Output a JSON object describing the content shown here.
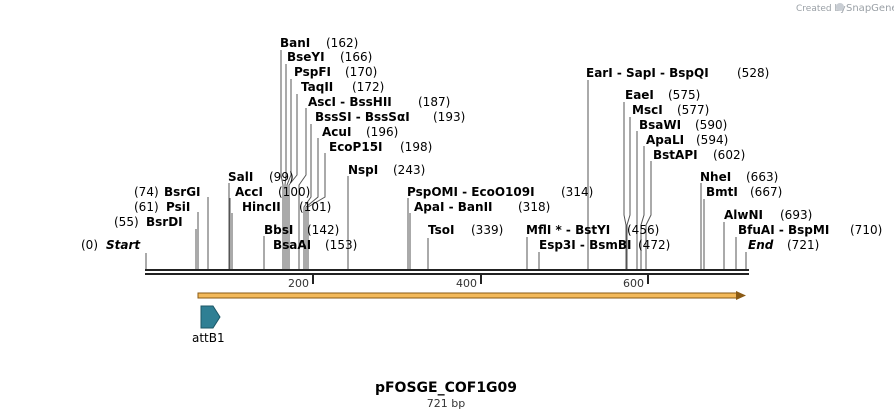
{
  "credit": "Created by",
  "brand": "SnapGene",
  "plasmid": {
    "name": "pFOSGE_COF1G09",
    "length_label": "721 bp",
    "length": 721
  },
  "ticks": [
    "200",
    "400",
    "600"
  ],
  "sites": [
    {
      "text": "Start",
      "pos": "(0)",
      "italic": true
    },
    {
      "text": "BsrDI",
      "pos": "(55)"
    },
    {
      "text": "PsiI",
      "pos": "(61)"
    },
    {
      "text": "BsrGI",
      "pos": "(74)"
    },
    {
      "text": "SalI",
      "pos": "(99)"
    },
    {
      "text": "AccI",
      "pos": "(100)"
    },
    {
      "text": "HincII",
      "pos": "(101)"
    },
    {
      "text": "BbsI",
      "pos": "(142)"
    },
    {
      "text": "BsaAI",
      "pos": "(153)"
    },
    {
      "text": "BanI",
      "pos": "(162)"
    },
    {
      "text": "BseYI",
      "pos": "(166)"
    },
    {
      "text": "PspFI",
      "pos": "(170)"
    },
    {
      "text": "TaqII",
      "pos": "(172)"
    },
    {
      "text": "AscI  -  BssHII",
      "pos": "(187)"
    },
    {
      "text": "BssSI  -  BssSαI",
      "pos": "(193)"
    },
    {
      "text": "AcuI",
      "pos": "(196)"
    },
    {
      "text": "EcoP15I",
      "pos": "(198)"
    },
    {
      "text": "NspI",
      "pos": "(243)"
    },
    {
      "text": "PspOMI  -  EcoO109I",
      "pos": "(314)"
    },
    {
      "text": "ApaI  -  BanII",
      "pos": "(318)"
    },
    {
      "text": "TsoI",
      "pos": "(339)"
    },
    {
      "text": "MflI *  -  BstYI",
      "pos": "(456)"
    },
    {
      "text": "Esp3I  -  BsmBI",
      "pos": "(472)"
    },
    {
      "text": "EarI  -  SapI  -  BspQI",
      "pos": "(528)"
    },
    {
      "text": "EaeI",
      "pos": "(575)"
    },
    {
      "text": "MscI",
      "pos": "(577)"
    },
    {
      "text": "BsaWI",
      "pos": "(590)"
    },
    {
      "text": "ApaLI",
      "pos": "(594)"
    },
    {
      "text": "BstAPI",
      "pos": "(602)"
    },
    {
      "text": "NheI",
      "pos": "(663)"
    },
    {
      "text": "BmtI",
      "pos": "(667)"
    },
    {
      "text": "AlwNI",
      "pos": "(693)"
    },
    {
      "text": "BfuAI  -  BspMI",
      "pos": "(710)"
    },
    {
      "text": "End",
      "pos": "(721)",
      "italic": true
    }
  ],
  "features": [
    {
      "name": "attB1"
    }
  ],
  "colors": {
    "orf_fill": "#f3b95a",
    "orf_stroke": "#8a5a14",
    "feature_fill": "#2f7f94",
    "feature_stroke": "#1c5766"
  }
}
